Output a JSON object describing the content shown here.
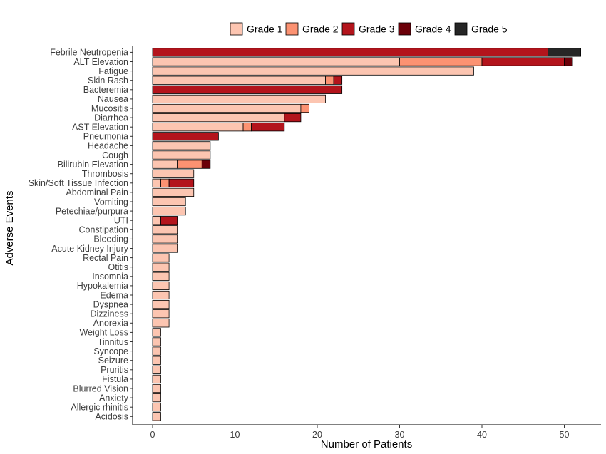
{
  "chart_data": {
    "type": "bar",
    "orientation": "horizontal",
    "stacked": true,
    "xlabel": "Number of Patients",
    "ylabel": "Adverse Events",
    "xlim": [
      0,
      54
    ],
    "xticks": [
      0,
      10,
      20,
      30,
      40,
      50
    ],
    "grid": false,
    "legend_position": "top",
    "categories": [
      "Febrile Neutropenia",
      "ALT Elevation",
      "Fatigue",
      "Skin Rash",
      "Bacteremia",
      "Nausea",
      "Mucositis",
      "Diarrhea",
      "AST Elevation",
      "Pneumonia",
      "Headache",
      "Cough",
      "Bilirubin Elevation",
      "Thrombosis",
      "Skin/Soft Tissue Infection",
      "Abdominal Pain",
      "Vomiting",
      "Petechiae/purpura",
      "UTI",
      "Constipation",
      "Bleeding",
      "Acute Kidney Injury",
      "Rectal Pain",
      "Otitis",
      "Insomnia",
      "Hypokalemia",
      "Edema",
      "Dyspnea",
      "Dizziness",
      "Anorexia",
      "Weight Loss",
      "Tinnitus",
      "Syncope",
      "Seizure",
      "Pruritis",
      "Fistula",
      "Blurred Vision",
      "Anxiety",
      "Allergic rhinitis",
      "Acidosis"
    ],
    "series": [
      {
        "name": "Grade 1",
        "color": "#fcc5b1",
        "values": [
          0,
          30,
          39,
          21,
          0,
          21,
          18,
          16,
          11,
          0,
          7,
          7,
          3,
          5,
          1,
          5,
          4,
          4,
          1,
          3,
          3,
          3,
          2,
          2,
          2,
          2,
          2,
          2,
          2,
          2,
          1,
          1,
          1,
          1,
          1,
          1,
          1,
          1,
          1,
          1
        ]
      },
      {
        "name": "Grade 2",
        "color": "#fc9272",
        "values": [
          0,
          10,
          0,
          1,
          0,
          0,
          1,
          0,
          1,
          0,
          0,
          0,
          3,
          0,
          1,
          0,
          0,
          0,
          0,
          0,
          0,
          0,
          0,
          0,
          0,
          0,
          0,
          0,
          0,
          0,
          0,
          0,
          0,
          0,
          0,
          0,
          0,
          0,
          0,
          0
        ]
      },
      {
        "name": "Grade 3",
        "color": "#b3141c",
        "values": [
          48,
          10,
          0,
          1,
          23,
          0,
          0,
          2,
          4,
          8,
          0,
          0,
          0,
          0,
          3,
          0,
          0,
          0,
          2,
          0,
          0,
          0,
          0,
          0,
          0,
          0,
          0,
          0,
          0,
          0,
          0,
          0,
          0,
          0,
          0,
          0,
          0,
          0,
          0,
          0
        ]
      },
      {
        "name": "Grade 4",
        "color": "#6b0009",
        "values": [
          0,
          1,
          0,
          0,
          0,
          0,
          0,
          0,
          0,
          0,
          0,
          0,
          1,
          0,
          0,
          0,
          0,
          0,
          0,
          0,
          0,
          0,
          0,
          0,
          0,
          0,
          0,
          0,
          0,
          0,
          0,
          0,
          0,
          0,
          0,
          0,
          0,
          0,
          0,
          0
        ]
      },
      {
        "name": "Grade 5",
        "color": "#262626",
        "values": [
          4,
          0,
          0,
          0,
          0,
          0,
          0,
          0,
          0,
          0,
          0,
          0,
          0,
          0,
          0,
          0,
          0,
          0,
          0,
          0,
          0,
          0,
          0,
          0,
          0,
          0,
          0,
          0,
          0,
          0,
          0,
          0,
          0,
          0,
          0,
          0,
          0,
          0,
          0,
          0
        ]
      }
    ]
  }
}
